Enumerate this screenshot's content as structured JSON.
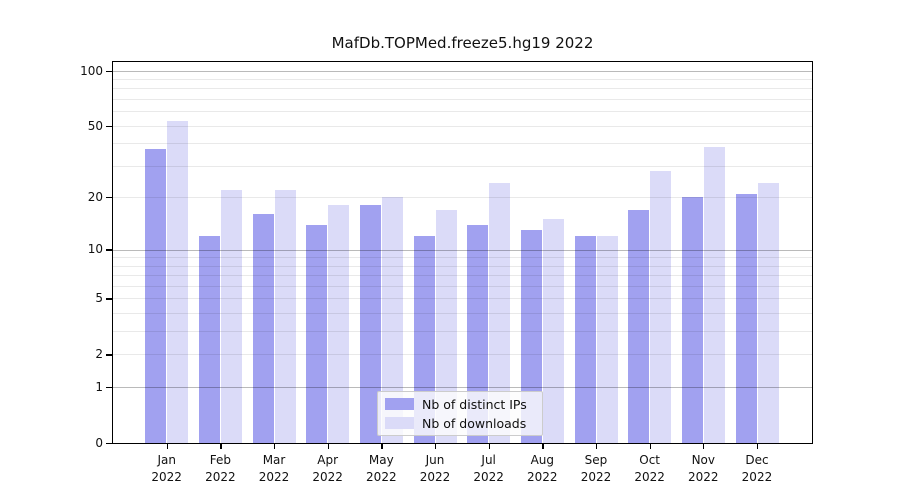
{
  "chart_data": {
    "type": "bar",
    "title": "MafDb.TOPMed.freeze5.hg19 2022",
    "categories": [
      "Jan",
      "Feb",
      "Mar",
      "Apr",
      "May",
      "Jun",
      "Jul",
      "Aug",
      "Sep",
      "Oct",
      "Nov",
      "Dec"
    ],
    "year_label": "2022",
    "series": [
      {
        "name": "Nb of distinct IPs",
        "color": "#a1a1f0",
        "values": [
          37,
          12,
          16,
          14,
          18,
          12,
          14,
          13,
          12,
          17,
          20,
          21
        ]
      },
      {
        "name": "Nb of downloads",
        "color": "#dbdbf8",
        "values": [
          53,
          22,
          22,
          18,
          20,
          17,
          24,
          15,
          12,
          28,
          38,
          24
        ]
      }
    ],
    "xlabel": "",
    "ylabel": "",
    "yscale": "log1p",
    "yticks": [
      0,
      1,
      2,
      5,
      10,
      20,
      50,
      100
    ],
    "minor_yticks": [
      3,
      4,
      6,
      7,
      8,
      9,
      30,
      40,
      60,
      70,
      80,
      90
    ],
    "major_gridlines": [
      1,
      10,
      100
    ],
    "ylim": [
      0,
      112
    ],
    "grid": true,
    "legend_position": "lower center"
  },
  "colors": {
    "distinct_ips": "#a1a1f0",
    "downloads": "#dbdbf8",
    "grid_major": "rgba(0,0,0,0.27)",
    "grid_minor": "rgba(0,0,0,0.085)",
    "axis": "#000000",
    "text": "#111111",
    "legend_border": "#cccccc"
  }
}
